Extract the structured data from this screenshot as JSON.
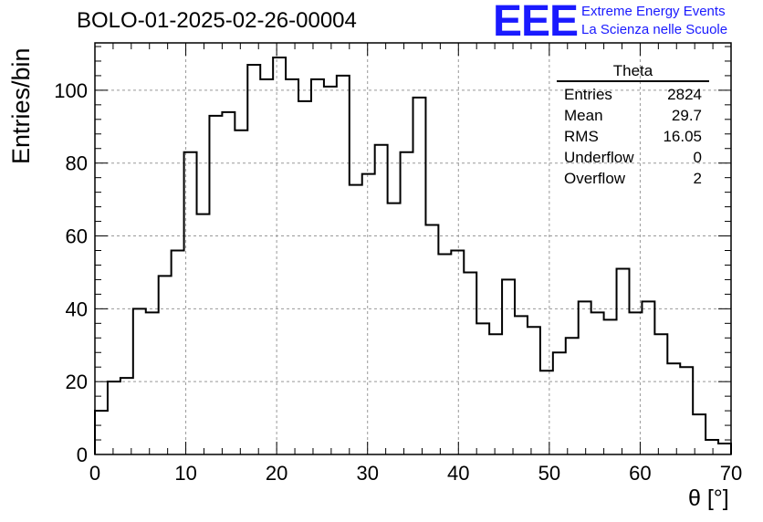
{
  "header": {
    "title": "BOLO-01-2025-02-26-00004",
    "logo_text": "EEE",
    "logo_line1": "Extreme Energy Events",
    "logo_line2": "La Scienza nelle Scuole"
  },
  "stats_box": {
    "title": "Theta",
    "rows": [
      {
        "label": "Entries",
        "value": "2824"
      },
      {
        "label": "Mean",
        "value": "29.7"
      },
      {
        "label": "RMS",
        "value": "16.05"
      },
      {
        "label": "Underflow",
        "value": "0"
      },
      {
        "label": "Overflow",
        "value": "2"
      }
    ]
  },
  "chart_data": {
    "type": "bar",
    "histogram": true,
    "bin_width": 1.4,
    "x_bin_edges_start": 0,
    "values": [
      12,
      20,
      21,
      40,
      39,
      49,
      56,
      83,
      66,
      93,
      94,
      89,
      107,
      103,
      109,
      103,
      97,
      103,
      101,
      104,
      74,
      77,
      85,
      69,
      83,
      98,
      63,
      55,
      56,
      50,
      36,
      33,
      48,
      38,
      35,
      23,
      28,
      32,
      42,
      39,
      37,
      51,
      39,
      42,
      33,
      25,
      24,
      11,
      4,
      3
    ],
    "xlabel": "θ [°]",
    "ylabel": "Entries/bin",
    "xlim": [
      0,
      70
    ],
    "ylim": [
      0,
      113
    ],
    "x_ticks": [
      0,
      10,
      20,
      30,
      40,
      50,
      60,
      70
    ],
    "y_ticks": [
      0,
      20,
      40,
      60,
      80,
      100
    ],
    "grid": true,
    "line_color": "#000000"
  }
}
